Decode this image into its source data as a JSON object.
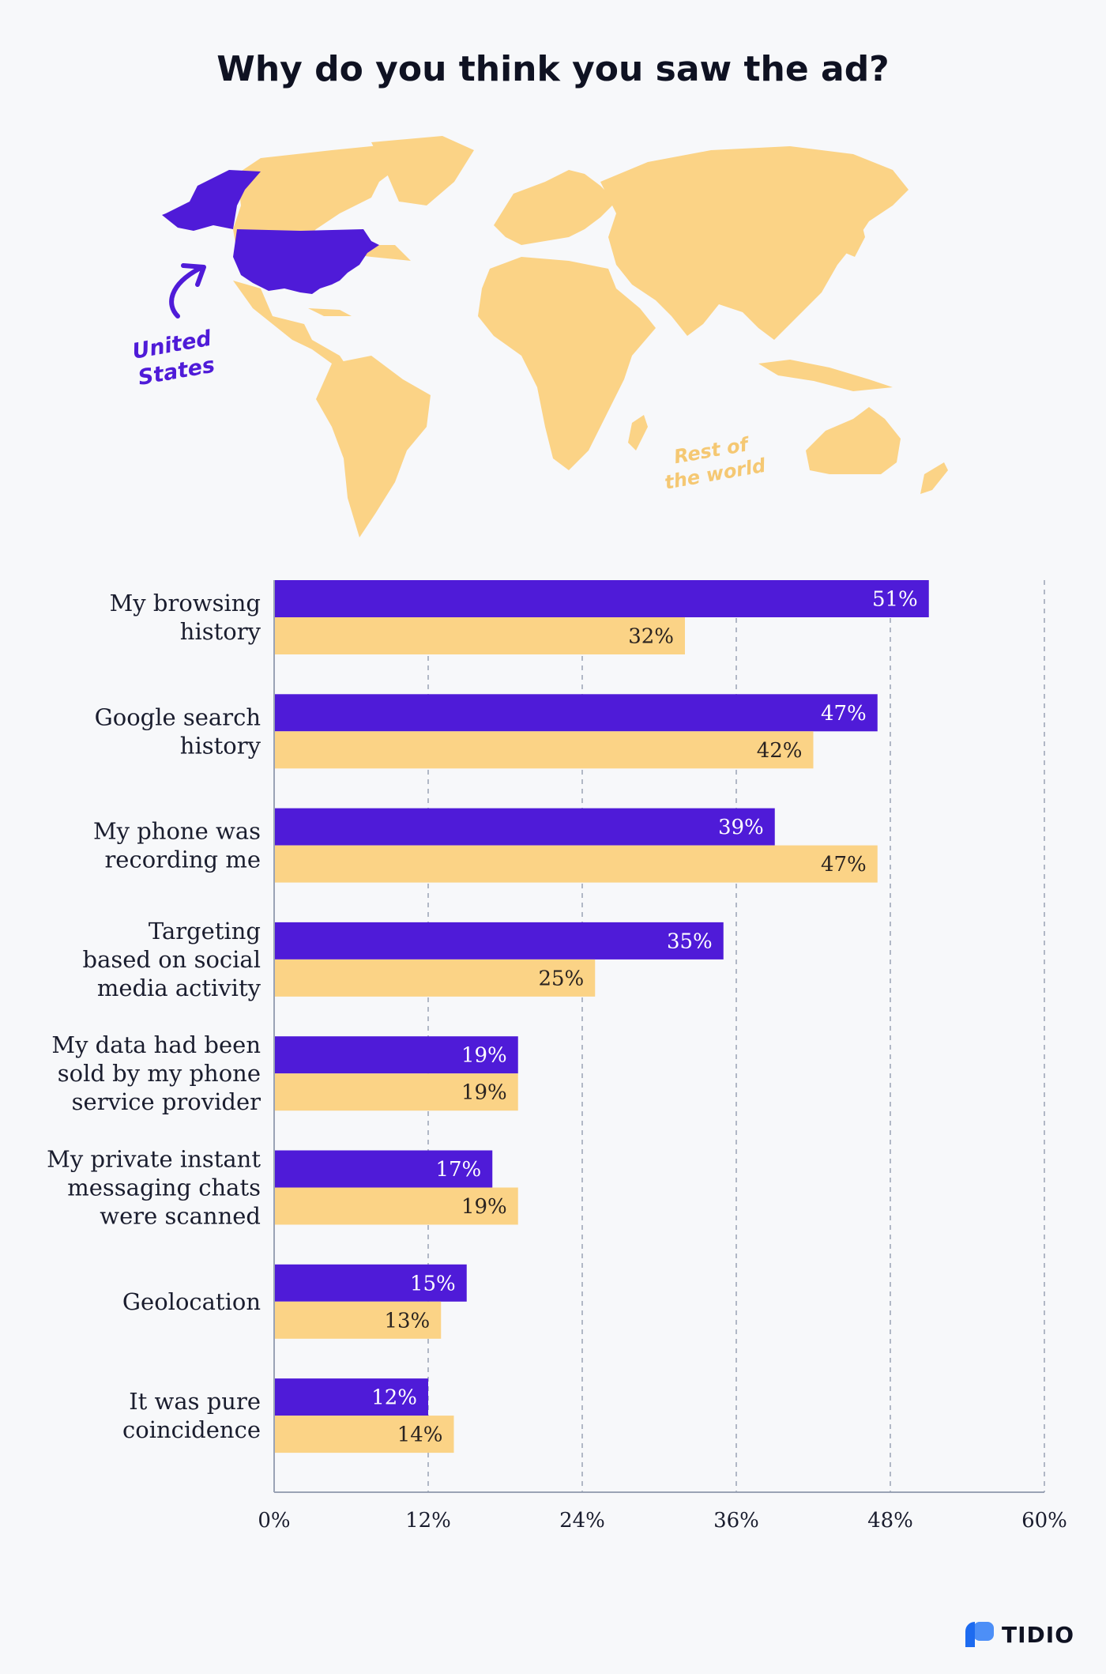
{
  "title": "Why do you think you saw the ad?",
  "map": {
    "us_label_line1": "United",
    "us_label_line2": "States",
    "rest_label_line1": "Rest of",
    "rest_label_line2": "the world",
    "colors": {
      "us": "#4f1bd8",
      "rest": "#fbd386"
    }
  },
  "brand": {
    "name": "TIDIO",
    "icon": "tidio-logo-icon"
  },
  "chart_data": {
    "type": "bar",
    "orientation": "horizontal",
    "categories": [
      [
        "My browsing",
        "history"
      ],
      [
        "Google search",
        "history"
      ],
      [
        "My phone was",
        "recording me"
      ],
      [
        "Targeting",
        "based on social",
        "media activity"
      ],
      [
        "My data had been",
        "sold by my phone",
        "service provider"
      ],
      [
        "My private instant",
        "messaging chats",
        "were scanned"
      ],
      [
        "Geolocation"
      ],
      [
        "It was pure",
        "coincidence"
      ]
    ],
    "series": [
      {
        "values": [
          51,
          47,
          39,
          35,
          19,
          17,
          15,
          12
        ],
        "color": "#4f1bd8",
        "label_color": "#ffffff"
      },
      {
        "values": [
          32,
          42,
          47,
          25,
          19,
          19,
          13,
          14
        ],
        "color": "#fbd386",
        "label_color": "#2a2320"
      }
    ],
    "xlim": [
      0,
      60
    ],
    "xticks": [
      0,
      12,
      24,
      36,
      48,
      60
    ],
    "tick_suffix": "%",
    "grid": "vertical-dashed",
    "legend": "none"
  }
}
